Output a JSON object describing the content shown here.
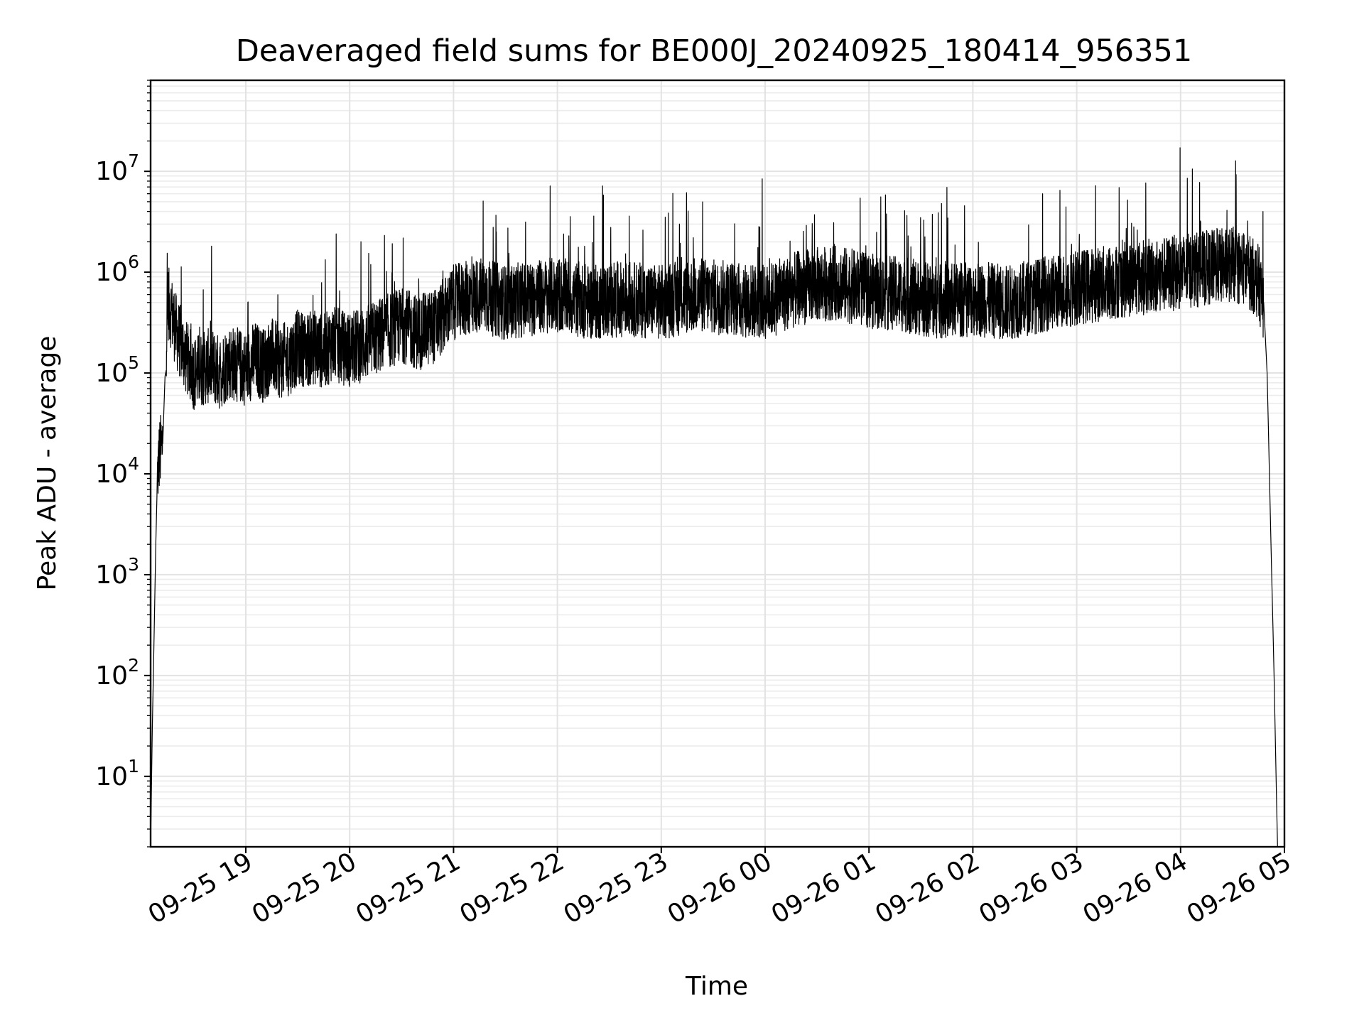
{
  "chart_data": {
    "type": "line",
    "title": "Deaveraged field sums for BE000J_20240925_180414_956351",
    "xlabel": "Time",
    "ylabel": "Peak ADU - average",
    "yscale": "log",
    "ylim": [
      2,
      80000000
    ],
    "xlim": [
      "2024-09-25 18:05",
      "2024-09-26 05:00"
    ],
    "grid": true,
    "grid_color": "#e3e3e3",
    "line_color": "#000000",
    "x_ticks": [
      {
        "value": "2024-09-25 19:00",
        "label": "09-25 19"
      },
      {
        "value": "2024-09-25 20:00",
        "label": "09-25 20"
      },
      {
        "value": "2024-09-25 21:00",
        "label": "09-25 21"
      },
      {
        "value": "2024-09-25 22:00",
        "label": "09-25 22"
      },
      {
        "value": "2024-09-25 23:00",
        "label": "09-25 23"
      },
      {
        "value": "2024-09-26 00:00",
        "label": "09-26 00"
      },
      {
        "value": "2024-09-26 01:00",
        "label": "09-26 01"
      },
      {
        "value": "2024-09-26 02:00",
        "label": "09-26 02"
      },
      {
        "value": "2024-09-26 03:00",
        "label": "09-26 03"
      },
      {
        "value": "2024-09-26 04:00",
        "label": "09-26 04"
      },
      {
        "value": "2024-09-26 05:00",
        "label": "09-26 05"
      }
    ],
    "y_ticks": [
      {
        "value": 10,
        "base": "10",
        "exp": "1"
      },
      {
        "value": 100,
        "base": "10",
        "exp": "2"
      },
      {
        "value": 1000,
        "base": "10",
        "exp": "3"
      },
      {
        "value": 10000,
        "base": "10",
        "exp": "4"
      },
      {
        "value": 100000,
        "base": "10",
        "exp": "5"
      },
      {
        "value": 1000000,
        "base": "10",
        "exp": "6"
      },
      {
        "value": 10000000,
        "base": "10",
        "exp": "7"
      }
    ],
    "series": [
      {
        "x": [
          "2024-09-25 18:05",
          "2024-09-25 18:06",
          "2024-09-25 18:08",
          "2024-09-25 18:09",
          "2024-09-25 18:10",
          "2024-09-25 18:12",
          "2024-09-25 18:14",
          "2024-09-25 18:15",
          "2024-09-25 18:17",
          "2024-09-25 18:20",
          "2024-09-25 18:25",
          "2024-09-25 18:30",
          "2024-09-25 18:35",
          "2024-09-25 18:40",
          "2024-09-25 18:45",
          "2024-09-25 18:50",
          "2024-09-25 18:55",
          "2024-09-25 19:00",
          "2024-09-25 19:05",
          "2024-09-25 19:10",
          "2024-09-25 19:15",
          "2024-09-25 19:20",
          "2024-09-25 19:25",
          "2024-09-25 19:30",
          "2024-09-25 19:35",
          "2024-09-25 19:40",
          "2024-09-25 19:45",
          "2024-09-25 19:50",
          "2024-09-25 19:55",
          "2024-09-25 20:00",
          "2024-09-25 20:10",
          "2024-09-25 20:20",
          "2024-09-25 20:30",
          "2024-09-25 20:40",
          "2024-09-25 20:50",
          "2024-09-25 21:00",
          "2024-09-25 21:15",
          "2024-09-25 21:30",
          "2024-09-25 21:45",
          "2024-09-25 22:00",
          "2024-09-25 22:20",
          "2024-09-25 22:40",
          "2024-09-25 23:00",
          "2024-09-25 23:20",
          "2024-09-25 23:40",
          "2024-09-26 00:00",
          "2024-09-26 00:20",
          "2024-09-26 00:40",
          "2024-09-26 01:00",
          "2024-09-26 01:20",
          "2024-09-26 01:40",
          "2024-09-26 02:00",
          "2024-09-26 02:20",
          "2024-09-26 02:40",
          "2024-09-26 03:00",
          "2024-09-26 03:20",
          "2024-09-26 03:40",
          "2024-09-26 04:00",
          "2024-09-26 04:15",
          "2024-09-26 04:30",
          "2024-09-26 04:40",
          "2024-09-26 04:45",
          "2024-09-26 04:48",
          "2024-09-26 04:50",
          "2024-09-26 04:52",
          "2024-09-26 04:54",
          "2024-09-26 04:56"
        ],
        "y": [
          2,
          30,
          2000,
          10000,
          15000,
          20000,
          200000,
          500000,
          400000,
          250000,
          150000,
          100000,
          110000,
          120000,
          100000,
          130000,
          120000,
          110000,
          140000,
          120000,
          150000,
          130000,
          140000,
          180000,
          170000,
          180000,
          160000,
          200000,
          180000,
          170000,
          200000,
          250000,
          300000,
          250000,
          300000,
          500000,
          600000,
          500000,
          550000,
          600000,
          500000,
          550000,
          500000,
          600000,
          550000,
          500000,
          700000,
          800000,
          650000,
          600000,
          500000,
          550000,
          500000,
          600000,
          700000,
          800000,
          900000,
          1000000,
          1100000,
          1200000,
          1000000,
          800000,
          500000,
          100000,
          3000,
          100,
          2
        ]
      }
    ]
  }
}
